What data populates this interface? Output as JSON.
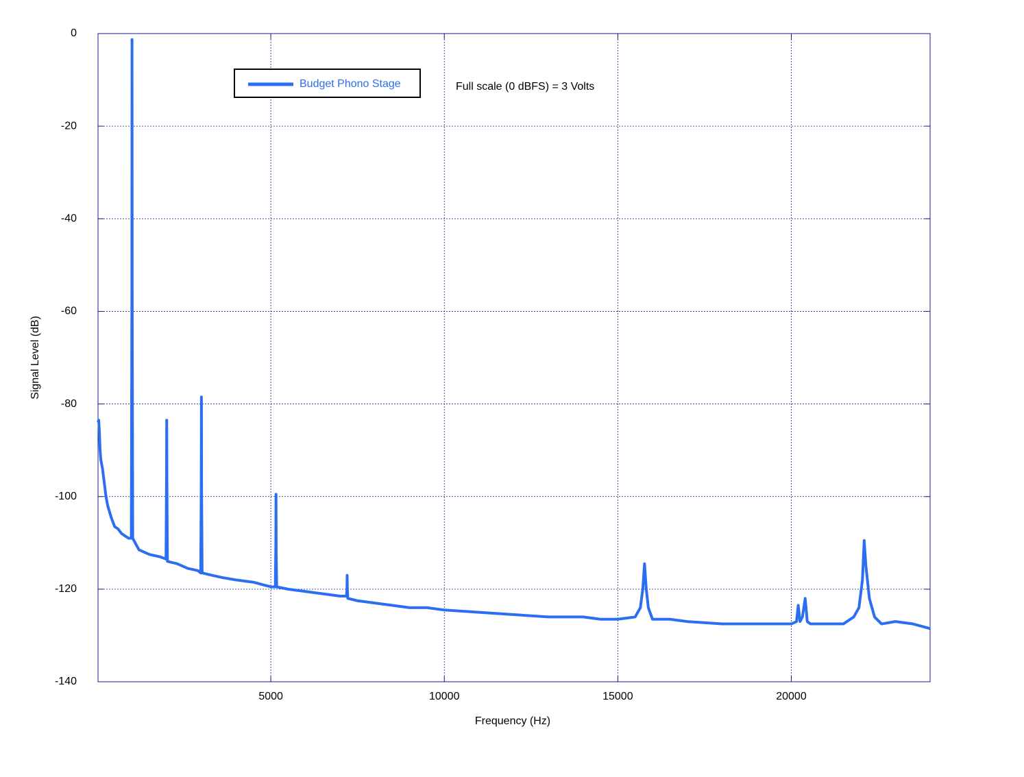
{
  "chart_data": {
    "type": "line",
    "annotation": "Full scale (0 dBFS) = 3 Volts",
    "xlabel": "Frequency (Hz)",
    "ylabel": "Signal Level (dB)",
    "xlim": [
      20,
      24000
    ],
    "ylim": [
      -140,
      0
    ],
    "xticks": [
      5000,
      10000,
      15000,
      20000
    ],
    "yticks": [
      0,
      -20,
      -40,
      -60,
      -80,
      -100,
      -120,
      -140
    ],
    "grid": true,
    "legend": "upper left",
    "x": [
      20,
      40,
      60,
      80,
      100,
      150,
      200,
      250,
      300,
      400,
      500,
      600,
      700,
      800,
      900,
      980,
      995,
      1000,
      1005,
      1020,
      1200,
      1500,
      1800,
      1980,
      1995,
      2000,
      2005,
      2020,
      2300,
      2600,
      2900,
      2980,
      2995,
      3000,
      3005,
      3020,
      3300,
      3600,
      4000,
      4500,
      5000,
      5130,
      5145,
      5150,
      5155,
      5170,
      5500,
      6000,
      6500,
      7000,
      7180,
      7195,
      7200,
      7205,
      7220,
      7500,
      8000,
      8500,
      9000,
      9500,
      10000,
      11000,
      12000,
      13000,
      14000,
      14500,
      15000,
      15500,
      15650,
      15720,
      15770,
      15820,
      15880,
      16000,
      16500,
      17000,
      18000,
      19000,
      20000,
      20150,
      20200,
      20250,
      20320,
      20400,
      20460,
      20550,
      21000,
      21500,
      21800,
      21950,
      22050,
      22100,
      22150,
      22250,
      22400,
      22600,
      23000,
      23500,
      24000
    ],
    "series": [
      {
        "name": "Budget Phono Stage",
        "color": "#2b6ef2",
        "values": [
          -84,
          -83.5,
          -86,
          -90,
          -92,
          -94,
          -97,
          -100,
          -102,
          -104.5,
          -106.5,
          -107,
          -108,
          -108.5,
          -109,
          -109,
          -60,
          -1.3,
          -55,
          -109,
          -111.5,
          -112.5,
          -113,
          -113.5,
          -95,
          -83.5,
          -95,
          -114,
          -114.5,
          -115.5,
          -116,
          -116.5,
          -98,
          -78.5,
          -98,
          -116.5,
          -117,
          -117.5,
          -118,
          -118.5,
          -119.5,
          -119.5,
          -110,
          -99.5,
          -112,
          -119.5,
          -120,
          -120.5,
          -121,
          -121.5,
          -121.5,
          -120,
          -117,
          -120,
          -122,
          -122.5,
          -123,
          -123.5,
          -124,
          -124,
          -124.5,
          -125,
          -125.5,
          -126,
          -126,
          -126.5,
          -126.5,
          -126,
          -124,
          -120,
          -114.5,
          -120,
          -124,
          -126.5,
          -126.5,
          -127,
          -127.5,
          -127.5,
          -127.5,
          -127,
          -123.5,
          -127,
          -126,
          -122,
          -127,
          -127.5,
          -127.5,
          -127.5,
          -126,
          -124,
          -118,
          -109.5,
          -115,
          -122,
          -126,
          -127.5,
          -127,
          -127.5,
          -128.5
        ]
      }
    ]
  }
}
